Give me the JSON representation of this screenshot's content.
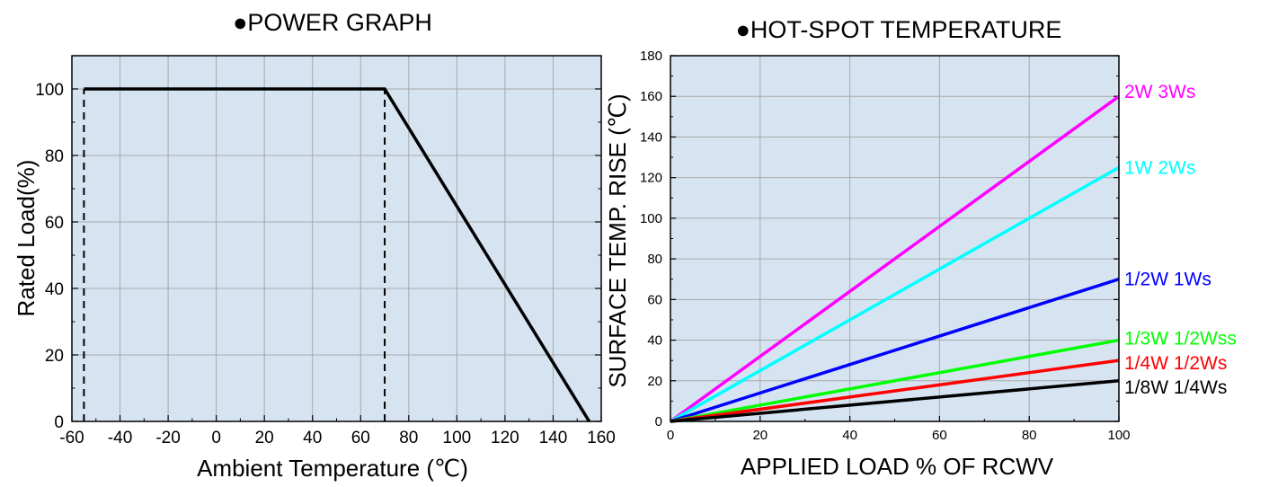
{
  "chart_data": [
    {
      "type": "line",
      "title": "●POWER GRAPH",
      "xlabel": "Ambient Temperature (℃)",
      "ylabel": "Rated Load(%)",
      "xlim": [
        -60,
        160
      ],
      "ylim": [
        0,
        110
      ],
      "x_ticks": [
        -60,
        -40,
        -20,
        0,
        20,
        40,
        60,
        80,
        100,
        120,
        140,
        160
      ],
      "y_ticks": [
        0,
        20,
        40,
        60,
        80,
        100
      ],
      "x_tick_labels": [
        "-60",
        "-40",
        "-20",
        "0",
        "20",
        "40",
        "60",
        "80",
        "100",
        "120",
        "140",
        "160"
      ],
      "y_tick_labels": [
        "0",
        "20",
        "40",
        "60",
        "80",
        "100"
      ],
      "grid": true,
      "background": "#d6e4f2",
      "series": [
        {
          "style": "solid",
          "color": "#000000",
          "points": [
            [
              -55,
              100
            ],
            [
              70,
              100
            ],
            [
              155,
              0
            ]
          ]
        }
      ],
      "reference_lines": [
        {
          "style": "dashed",
          "color": "#000000",
          "points": [
            [
              -55,
              0
            ],
            [
              -55,
              100
            ]
          ]
        },
        {
          "style": "dashed",
          "color": "#000000",
          "points": [
            [
              70,
              0
            ],
            [
              70,
              100
            ]
          ]
        }
      ]
    },
    {
      "type": "line",
      "title": "●HOT-SPOT TEMPERATURE",
      "xlabel": "APPLIED LOAD % OF RCWV",
      "ylabel": "SURFACE TEMP. RISE (℃)",
      "xlim": [
        0,
        100
      ],
      "ylim": [
        0,
        180
      ],
      "x_ticks": [
        0,
        20,
        40,
        60,
        80,
        100
      ],
      "y_ticks": [
        0,
        20,
        40,
        60,
        80,
        100,
        120,
        140,
        160,
        180
      ],
      "x_tick_labels": [
        "0",
        "20",
        "40",
        "60",
        "80",
        "100"
      ],
      "y_tick_labels": [
        "0",
        "20",
        "40",
        "60",
        "80",
        "100",
        "120",
        "140",
        "160",
        "180"
      ],
      "grid": true,
      "background": "#d6e4f2",
      "series": [
        {
          "name": "2W 3Ws",
          "color": "#ff00ff",
          "points": [
            [
              0,
              0
            ],
            [
              100,
              160
            ]
          ]
        },
        {
          "name": "1W 2Ws",
          "color": "#00ffff",
          "points": [
            [
              0,
              0
            ],
            [
              100,
              125
            ]
          ]
        },
        {
          "name": "1/2W 1Ws",
          "color": "#0000ff",
          "points": [
            [
              0,
              0
            ],
            [
              100,
              70
            ]
          ]
        },
        {
          "name": "1/3W 1/2Wss",
          "color": "#00ff00",
          "points": [
            [
              0,
              0
            ],
            [
              100,
              40
            ]
          ]
        },
        {
          "name": "1/4W 1/2Ws",
          "color": "#ff0000",
          "points": [
            [
              0,
              0
            ],
            [
              100,
              30
            ]
          ]
        },
        {
          "name": "1/8W 1/4Ws",
          "color": "#000000",
          "points": [
            [
              0,
              0
            ],
            [
              100,
              20
            ]
          ]
        }
      ]
    }
  ]
}
